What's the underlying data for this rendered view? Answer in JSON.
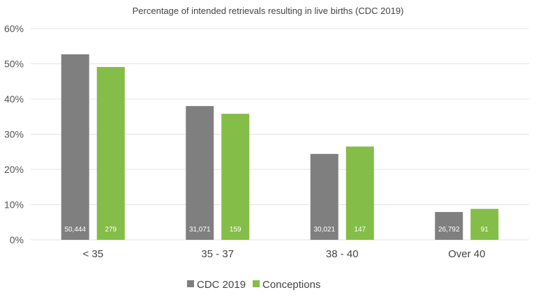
{
  "chart_data": {
    "type": "bar",
    "title": "Percentage of intended retrievals resulting in live births (CDC 2019)",
    "xlabel": "",
    "ylabel": "",
    "categories": [
      "< 35",
      "35 - 37",
      "38 - 40",
      "Over 40"
    ],
    "ylim": [
      0,
      60
    ],
    "yticks": [
      "0%",
      "10%",
      "20%",
      "30%",
      "40%",
      "50%",
      "60%"
    ],
    "grid": true,
    "legend_position": "bottom",
    "series": [
      {
        "name": "CDC 2019",
        "color": "#7f7f7f",
        "values": [
          52.7,
          38.0,
          24.4,
          7.9
        ],
        "bar_labels": [
          "50,444",
          "31,071",
          "30,021",
          "26,792"
        ]
      },
      {
        "name": "Conceptions",
        "color": "#84bd48",
        "values": [
          49.1,
          35.8,
          26.5,
          8.8
        ],
        "bar_labels": [
          "279",
          "159",
          "147",
          "91"
        ]
      }
    ]
  }
}
